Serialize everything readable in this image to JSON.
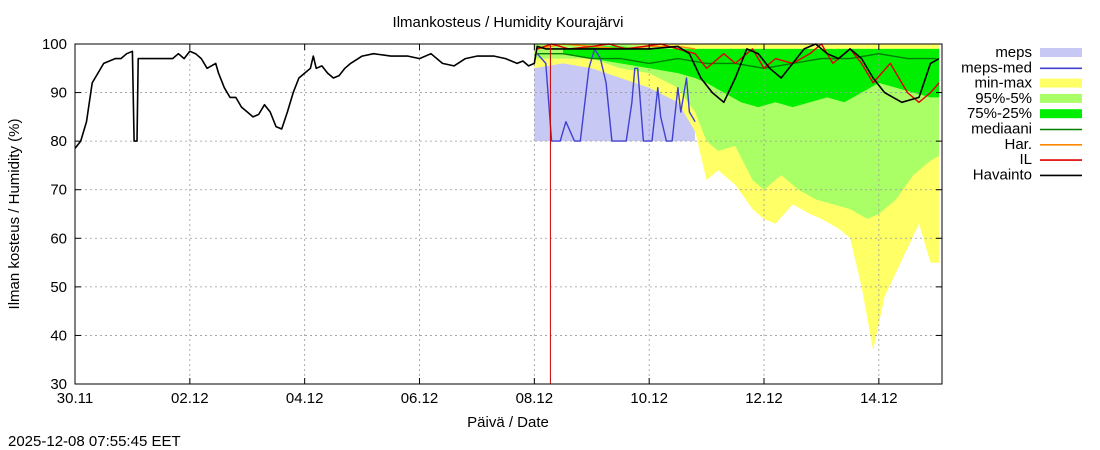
{
  "chart_data": {
    "type": "line",
    "title": "Ilmankosteus / Humidity  Kourajärvi",
    "xlabel": "Päivä / Date",
    "ylabel": "Ilman kosteus / Humidity (%)",
    "timestamp": "2025-12-08 07:55:45 EET",
    "x_unit": "days since 30.11 00:00",
    "xlim": [
      0,
      15.1
    ],
    "ylim": [
      30,
      100
    ],
    "y_ticks": [
      30,
      40,
      50,
      60,
      70,
      80,
      90,
      100
    ],
    "x_ticks": [
      {
        "x": 0,
        "label": "30.11"
      },
      {
        "x": 2,
        "label": "02.12"
      },
      {
        "x": 4,
        "label": "04.12"
      },
      {
        "x": 6,
        "label": "06.12"
      },
      {
        "x": 8,
        "label": "08.12"
      },
      {
        "x": 10,
        "label": "10.12"
      },
      {
        "x": 12,
        "label": "12.12"
      },
      {
        "x": 14,
        "label": "14.12"
      }
    ],
    "grid": true,
    "now_marker_x": 8.28,
    "legend": [
      {
        "key": "meps",
        "label": "meps",
        "color": "#c8c8f5",
        "kind": "band"
      },
      {
        "key": "meps_med",
        "label": "meps-med",
        "color": "#4040d0",
        "kind": "line"
      },
      {
        "key": "minmax",
        "label": "min-max",
        "color": "#ffff66",
        "kind": "band"
      },
      {
        "key": "p95_5",
        "label": "95%-5%",
        "color": "#aaff66",
        "kind": "band"
      },
      {
        "key": "p75_25",
        "label": "75%-25%",
        "color": "#00ee00",
        "kind": "band"
      },
      {
        "key": "mediaani",
        "label": "mediaani",
        "color": "#008000",
        "kind": "line"
      },
      {
        "key": "har",
        "label": "Har.",
        "color": "#ff8800",
        "kind": "line"
      },
      {
        "key": "il",
        "label": "IL",
        "color": "#e00000",
        "kind": "line"
      },
      {
        "key": "havainto",
        "label": "Havainto",
        "color": "#000000",
        "kind": "line"
      }
    ],
    "series": {
      "havainto": [
        [
          0,
          78.5
        ],
        [
          0.1,
          80
        ],
        [
          0.2,
          84
        ],
        [
          0.3,
          92
        ],
        [
          0.5,
          96
        ],
        [
          0.7,
          97
        ],
        [
          0.8,
          97
        ],
        [
          0.9,
          98
        ],
        [
          1,
          98.5
        ],
        [
          1.03,
          80
        ],
        [
          1.08,
          80
        ],
        [
          1.1,
          97
        ],
        [
          1.3,
          97
        ],
        [
          1.5,
          97
        ],
        [
          1.7,
          97
        ],
        [
          1.8,
          98
        ],
        [
          1.9,
          97
        ],
        [
          2,
          98.5
        ],
        [
          2.1,
          98
        ],
        [
          2.2,
          97
        ],
        [
          2.3,
          95
        ],
        [
          2.45,
          96
        ],
        [
          2.5,
          94
        ],
        [
          2.6,
          91
        ],
        [
          2.7,
          89
        ],
        [
          2.8,
          89
        ],
        [
          2.9,
          87
        ],
        [
          3.0,
          86
        ],
        [
          3.1,
          85
        ],
        [
          3.2,
          85.5
        ],
        [
          3.3,
          87.5
        ],
        [
          3.4,
          86
        ],
        [
          3.5,
          83
        ],
        [
          3.6,
          82.5
        ],
        [
          3.7,
          86
        ],
        [
          3.8,
          90
        ],
        [
          3.9,
          93
        ],
        [
          4.0,
          94
        ],
        [
          4.1,
          95
        ],
        [
          4.15,
          97.5
        ],
        [
          4.2,
          95
        ],
        [
          4.3,
          95.5
        ],
        [
          4.4,
          94
        ],
        [
          4.5,
          93
        ],
        [
          4.6,
          93.5
        ],
        [
          4.7,
          95
        ],
        [
          4.8,
          96
        ],
        [
          5.0,
          97.5
        ],
        [
          5.2,
          98
        ],
        [
          5.5,
          97.5
        ],
        [
          5.8,
          97.5
        ],
        [
          6.0,
          97
        ],
        [
          6.2,
          98
        ],
        [
          6.4,
          96
        ],
        [
          6.6,
          95.5
        ],
        [
          6.8,
          97
        ],
        [
          7.0,
          97.5
        ],
        [
          7.3,
          97.5
        ],
        [
          7.5,
          97
        ],
        [
          7.7,
          96
        ],
        [
          7.8,
          96.5
        ],
        [
          7.9,
          95.5
        ],
        [
          8.0,
          96
        ],
        [
          8.05,
          99.5
        ],
        [
          8.2,
          99
        ],
        [
          8.5,
          99
        ],
        [
          9,
          99
        ],
        [
          9.5,
          99
        ],
        [
          10,
          99
        ],
        [
          10.5,
          99.5
        ],
        [
          10.7,
          98
        ],
        [
          10.9,
          93
        ],
        [
          11.1,
          90
        ],
        [
          11.3,
          88
        ],
        [
          11.5,
          93
        ],
        [
          11.7,
          99
        ],
        [
          11.9,
          98
        ],
        [
          12.1,
          95
        ],
        [
          12.3,
          93
        ],
        [
          12.5,
          96
        ],
        [
          12.7,
          99
        ],
        [
          12.9,
          100
        ],
        [
          13.1,
          98
        ],
        [
          13.3,
          97
        ],
        [
          13.5,
          99
        ],
        [
          13.7,
          97
        ],
        [
          13.9,
          93
        ],
        [
          14.1,
          90
        ],
        [
          14.4,
          88
        ],
        [
          14.7,
          89
        ],
        [
          14.9,
          96
        ],
        [
          15.05,
          97
        ]
      ],
      "meps_med": [
        [
          8.05,
          98
        ],
        [
          8.2,
          96
        ],
        [
          8.3,
          80
        ],
        [
          8.45,
          80
        ],
        [
          8.55,
          84
        ],
        [
          8.7,
          80
        ],
        [
          8.8,
          80
        ],
        [
          8.95,
          95
        ],
        [
          9.05,
          99
        ],
        [
          9.15,
          97
        ],
        [
          9.25,
          92
        ],
        [
          9.35,
          80
        ],
        [
          9.45,
          80
        ],
        [
          9.6,
          80
        ],
        [
          9.7,
          88
        ],
        [
          9.75,
          95
        ],
        [
          9.8,
          95
        ],
        [
          9.9,
          80
        ],
        [
          10.05,
          80
        ],
        [
          10.15,
          91
        ],
        [
          10.2,
          85
        ],
        [
          10.3,
          80
        ],
        [
          10.4,
          80
        ],
        [
          10.5,
          91
        ],
        [
          10.55,
          86
        ],
        [
          10.65,
          93
        ],
        [
          10.7,
          86
        ],
        [
          10.8,
          84
        ]
      ],
      "mediaani": [
        [
          8.05,
          98
        ],
        [
          8.5,
          98
        ],
        [
          9,
          97
        ],
        [
          9.5,
          97
        ],
        [
          10,
          96
        ],
        [
          10.5,
          97
        ],
        [
          11,
          96
        ],
        [
          11.5,
          96
        ],
        [
          12,
          95
        ],
        [
          12.5,
          96
        ],
        [
          13,
          97
        ],
        [
          13.5,
          97
        ],
        [
          14,
          98
        ],
        [
          14.5,
          97
        ],
        [
          15,
          97
        ]
      ],
      "har": [
        [
          8.05,
          99
        ],
        [
          8.5,
          100
        ],
        [
          9,
          99.5
        ],
        [
          9.5,
          99
        ],
        [
          10,
          99.5
        ],
        [
          10.5,
          99.5
        ],
        [
          10.8,
          99
        ]
      ],
      "il": [
        [
          8.05,
          99
        ],
        [
          8.3,
          100
        ],
        [
          8.6,
          99
        ],
        [
          9,
          99.5
        ],
        [
          9.3,
          100
        ],
        [
          9.6,
          99
        ],
        [
          9.9,
          99.5
        ],
        [
          10.2,
          100
        ],
        [
          10.5,
          99
        ],
        [
          10.8,
          98
        ],
        [
          11.0,
          95
        ],
        [
          11.3,
          98
        ],
        [
          11.5,
          96
        ],
        [
          11.8,
          99
        ],
        [
          12.0,
          95
        ],
        [
          12.2,
          97
        ],
        [
          12.5,
          96
        ],
        [
          12.8,
          98
        ],
        [
          13.0,
          100
        ],
        [
          13.2,
          96
        ],
        [
          13.5,
          99
        ],
        [
          13.7,
          96
        ],
        [
          13.9,
          92
        ],
        [
          14.2,
          96
        ],
        [
          14.5,
          90
        ],
        [
          14.7,
          88
        ],
        [
          14.9,
          90
        ],
        [
          15.05,
          92
        ]
      ]
    },
    "bands": {
      "meps": [
        [
          8.0,
          99,
          80
        ],
        [
          8.2,
          98,
          80
        ],
        [
          8.4,
          98,
          80
        ],
        [
          8.6,
          99,
          80
        ],
        [
          8.8,
          99,
          80
        ],
        [
          9.0,
          99,
          80
        ],
        [
          9.2,
          99,
          80
        ],
        [
          9.4,
          99,
          80
        ],
        [
          9.6,
          99,
          80
        ],
        [
          9.8,
          99,
          80
        ],
        [
          10.0,
          99,
          80
        ],
        [
          10.2,
          99,
          80
        ],
        [
          10.4,
          99,
          80
        ],
        [
          10.6,
          99,
          80
        ],
        [
          10.8,
          99,
          80
        ]
      ],
      "minmax": [
        [
          8.0,
          100,
          95
        ],
        [
          8.5,
          100,
          96
        ],
        [
          9.0,
          100,
          95
        ],
        [
          9.5,
          100,
          93
        ],
        [
          10.0,
          100,
          91
        ],
        [
          10.5,
          100,
          88
        ],
        [
          10.8,
          100,
          82
        ],
        [
          11.0,
          100,
          72
        ],
        [
          11.2,
          100,
          74
        ],
        [
          11.5,
          100,
          71
        ],
        [
          11.8,
          100,
          66
        ],
        [
          12.0,
          100,
          64
        ],
        [
          12.2,
          100,
          63
        ],
        [
          12.5,
          100,
          67
        ],
        [
          12.8,
          100,
          65
        ],
        [
          13.0,
          100,
          64
        ],
        [
          13.3,
          100,
          62
        ],
        [
          13.5,
          100,
          60
        ],
        [
          13.7,
          100,
          50
        ],
        [
          13.9,
          100,
          37
        ],
        [
          14.1,
          100,
          48
        ],
        [
          14.3,
          100,
          53
        ],
        [
          14.5,
          100,
          58
        ],
        [
          14.7,
          100,
          63
        ],
        [
          14.9,
          100,
          55
        ],
        [
          15.05,
          100,
          55
        ]
      ],
      "p95_5": [
        [
          8.0,
          100,
          97
        ],
        [
          8.5,
          100,
          97
        ],
        [
          9.0,
          100,
          97
        ],
        [
          9.5,
          100,
          95
        ],
        [
          10.0,
          99.5,
          94
        ],
        [
          10.5,
          99.5,
          91
        ],
        [
          10.8,
          99,
          86
        ],
        [
          11.0,
          99,
          80
        ],
        [
          11.2,
          99,
          78
        ],
        [
          11.5,
          99,
          79
        ],
        [
          11.8,
          99,
          72
        ],
        [
          12.0,
          99,
          70
        ],
        [
          12.3,
          99,
          73
        ],
        [
          12.6,
          99,
          70
        ],
        [
          12.9,
          99,
          68
        ],
        [
          13.2,
          99,
          67
        ],
        [
          13.5,
          99,
          66
        ],
        [
          13.8,
          99,
          64
        ],
        [
          14.0,
          99,
          65
        ],
        [
          14.3,
          99,
          68
        ],
        [
          14.6,
          99,
          73
        ],
        [
          14.9,
          99,
          76
        ],
        [
          15.05,
          99,
          77
        ]
      ],
      "p75_25": [
        [
          8.5,
          99,
          98
        ],
        [
          9.0,
          99.5,
          97
        ],
        [
          9.5,
          99.5,
          96
        ],
        [
          10.0,
          99,
          95
        ],
        [
          10.5,
          99,
          94
        ],
        [
          10.8,
          99,
          93
        ],
        [
          11.0,
          99,
          92
        ],
        [
          11.3,
          99,
          90
        ],
        [
          11.6,
          99,
          88
        ],
        [
          11.9,
          99,
          87
        ],
        [
          12.2,
          99,
          88
        ],
        [
          12.5,
          99,
          87
        ],
        [
          12.8,
          99,
          88
        ],
        [
          13.1,
          99,
          89
        ],
        [
          13.4,
          99,
          88
        ],
        [
          13.7,
          99,
          90
        ],
        [
          14.0,
          99,
          92
        ],
        [
          14.3,
          99,
          91
        ],
        [
          14.6,
          99,
          90
        ],
        [
          14.9,
          99,
          89
        ],
        [
          15.05,
          99,
          89
        ]
      ]
    }
  }
}
